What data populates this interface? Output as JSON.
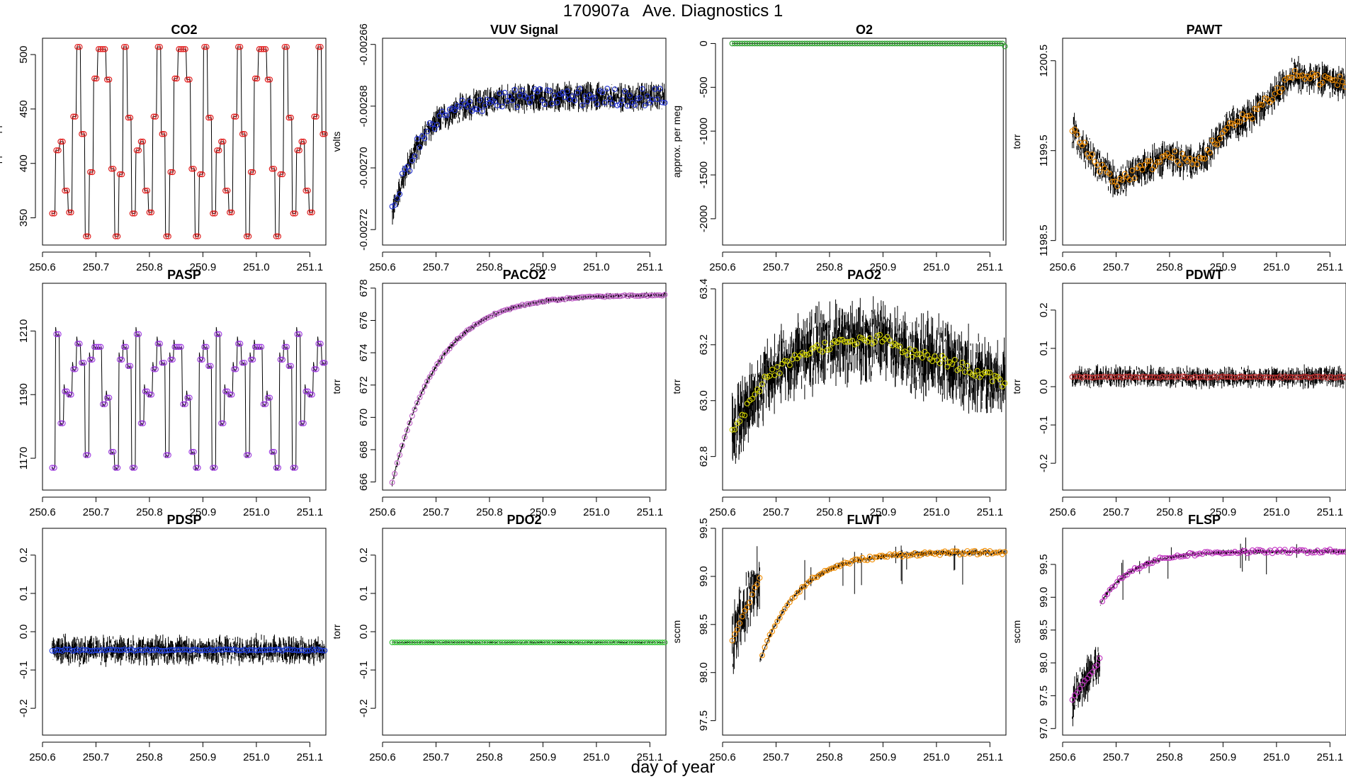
{
  "page": {
    "title": "170907a   Ave. Diagnostics 1",
    "xlabel": "day of year"
  },
  "chart_data": [
    {
      "type": "line",
      "title": "CO2",
      "ylabel": "approx. ppm",
      "marker_color": "#e02020",
      "xlim": [
        250.6,
        251.13
      ],
      "ylim": [
        325,
        515
      ],
      "xticks": [
        "250.6",
        "250.7",
        "250.8",
        "250.9",
        "251.0",
        "251.1"
      ],
      "yticks": [
        350,
        400,
        450,
        500
      ],
      "ytick_labels": [
        "350",
        "400",
        "450",
        "500"
      ],
      "series": [
        {
          "name": "CO2",
          "pattern": "cycle",
          "cycle_values": [
            354,
            412,
            420,
            375,
            355,
            443,
            507,
            427,
            333,
            392,
            478,
            505,
            505,
            477,
            395,
            333,
            390,
            507,
            442
          ]
        }
      ]
    },
    {
      "type": "line",
      "title": "VUV Signal",
      "ylabel": "volts",
      "marker_color": "#2030d0",
      "xlim": [
        250.6,
        251.13
      ],
      "ylim": [
        -0.002725,
        -0.002658
      ],
      "xticks": [
        "250.6",
        "250.7",
        "250.8",
        "250.9",
        "251.0",
        "251.1"
      ],
      "yticks": [
        -0.00272,
        -0.0027,
        -0.00268,
        -0.00266
      ],
      "ytick_labels": [
        "-0.00272",
        "-0.00270",
        "-0.00268",
        "-0.00266"
      ],
      "series": [
        {
          "name": "VUV",
          "pattern": "exp",
          "start": -0.002714,
          "end": -0.002677,
          "tau": 0.055,
          "noise": 7.5e-06,
          "spread": 3e-06
        }
      ]
    },
    {
      "type": "line",
      "title": "O2",
      "ylabel": "approx. per meg",
      "marker_color": "#2aa02a",
      "xlim": [
        250.6,
        251.13
      ],
      "ylim": [
        -2300,
        60
      ],
      "xticks": [
        "250.6",
        "250.7",
        "250.8",
        "250.9",
        "251.0",
        "251.1"
      ],
      "yticks": [
        -2000,
        -1500,
        -1000,
        -500,
        0
      ],
      "ytick_labels": [
        "-2000",
        "-1500",
        "-1000",
        "-500",
        "0"
      ],
      "series": [
        {
          "name": "O2",
          "pattern": "flat_drop",
          "value": 0,
          "drop_to": -2250,
          "noise": 0
        }
      ]
    },
    {
      "type": "line",
      "title": "PAWT",
      "ylabel": "torr",
      "marker_color": "#f08c00",
      "xlim": [
        250.6,
        251.13
      ],
      "ylim": [
        1198.45,
        1200.75
      ],
      "xticks": [
        "250.6",
        "250.7",
        "250.8",
        "250.9",
        "251.0",
        "251.1"
      ],
      "yticks": [
        1198.5,
        1199.5,
        1200.5
      ],
      "ytick_labels": [
        "1198.5",
        "1199.5",
        "1200.5"
      ],
      "series": [
        {
          "name": "PAWT",
          "pattern": "piecewise",
          "points": [
            [
              250.62,
              1199.72
            ],
            [
              250.65,
              1199.45
            ],
            [
              250.7,
              1199.15
            ],
            [
              250.75,
              1199.3
            ],
            [
              250.8,
              1199.45
            ],
            [
              250.85,
              1199.35
            ],
            [
              250.9,
              1199.7
            ],
            [
              250.95,
              1199.9
            ],
            [
              251.0,
              1200.15
            ],
            [
              251.03,
              1200.35
            ],
            [
              251.13,
              1200.25
            ]
          ],
          "noise": 0.32,
          "spread": 0.07
        }
      ]
    },
    {
      "type": "line",
      "title": "PASP",
      "ylabel": "torr",
      "marker_color": "#a040e0",
      "xlim": [
        250.6,
        251.13
      ],
      "ylim": [
        1160,
        1225
      ],
      "xticks": [
        "250.6",
        "250.7",
        "250.8",
        "250.9",
        "251.0",
        "251.1"
      ],
      "yticks": [
        1170,
        1190,
        1210
      ],
      "ytick_labels": [
        "1170",
        "1190",
        "1210"
      ],
      "series": [
        {
          "name": "PASP",
          "pattern": "cycle",
          "cycle_values": [
            1167,
            1209,
            1181,
            1191,
            1190,
            1198,
            1206,
            1200,
            1171,
            1201,
            1205,
            1205,
            1187,
            1189,
            1172,
            1167,
            1201,
            1205,
            1199
          ]
        }
      ]
    },
    {
      "type": "line",
      "title": "PACO2",
      "ylabel": "torr",
      "marker_color": "#c060c8",
      "xlim": [
        250.6,
        251.13
      ],
      "ylim": [
        665.5,
        678.3
      ],
      "xticks": [
        "250.6",
        "250.7",
        "250.8",
        "250.9",
        "251.0",
        "251.1"
      ],
      "yticks": [
        666,
        668,
        670,
        672,
        674,
        676,
        678
      ],
      "ytick_labels": [
        "666",
        "668",
        "670",
        "672",
        "674",
        "676",
        "678"
      ],
      "series": [
        {
          "name": "PACO2",
          "pattern": "exp",
          "start": 666.2,
          "end": 677.6,
          "tau": 0.085,
          "noise": 0.28,
          "spread": 0.05
        }
      ]
    },
    {
      "type": "line",
      "title": "PAO2",
      "ylabel": "torr",
      "marker_color": "#d4d400",
      "xlim": [
        250.6,
        251.13
      ],
      "ylim": [
        62.68,
        63.42
      ],
      "xticks": [
        "250.6",
        "250.7",
        "250.8",
        "250.9",
        "251.0",
        "251.1"
      ],
      "yticks": [
        62.8,
        63.0,
        63.2,
        63.4
      ],
      "ytick_labels": [
        "62.8",
        "63.0",
        "63.2",
        "63.4"
      ],
      "series": [
        {
          "name": "PAO2",
          "pattern": "piecewise",
          "points": [
            [
              250.62,
              62.9
            ],
            [
              250.68,
              63.08
            ],
            [
              250.75,
              63.17
            ],
            [
              250.8,
              63.2
            ],
            [
              250.9,
              63.22
            ],
            [
              250.95,
              63.17
            ],
            [
              251.0,
              63.15
            ],
            [
              251.05,
              63.12
            ],
            [
              251.13,
              63.06
            ]
          ],
          "noise": 0.23,
          "spread": 0.018
        }
      ]
    },
    {
      "type": "line",
      "title": "PDWT",
      "ylabel": "torr",
      "marker_color": "#c03030",
      "xlim": [
        250.6,
        251.13
      ],
      "ylim": [
        -0.27,
        0.27
      ],
      "xticks": [
        "250.6",
        "250.7",
        "250.8",
        "250.9",
        "251.0",
        "251.1"
      ],
      "yticks": [
        -0.2,
        -0.1,
        0.0,
        0.1,
        0.2
      ],
      "ytick_labels": [
        "-0.2",
        "-0.1",
        "0.0",
        "0.1",
        "0.2"
      ],
      "series": [
        {
          "name": "PDWT",
          "pattern": "flat",
          "value": 0.025,
          "noise": 0.045,
          "spread": 0.002
        }
      ]
    },
    {
      "type": "line",
      "title": "PDSP",
      "ylabel": "torr",
      "marker_color": "#2040e0",
      "xlim": [
        250.6,
        251.13
      ],
      "ylim": [
        -0.27,
        0.27
      ],
      "xticks": [
        "250.6",
        "250.7",
        "250.8",
        "250.9",
        "251.0",
        "251.1"
      ],
      "yticks": [
        -0.2,
        -0.1,
        0.0,
        0.1,
        0.2
      ],
      "ytick_labels": [
        "-0.2",
        "-0.1",
        "0.0",
        "0.1",
        "0.2"
      ],
      "series": [
        {
          "name": "PDSP",
          "pattern": "flat",
          "value": -0.048,
          "noise": 0.06,
          "spread": 0.002
        }
      ]
    },
    {
      "type": "line",
      "title": "PDO2",
      "ylabel": "torr",
      "marker_color": "#30c030",
      "xlim": [
        250.6,
        251.13
      ],
      "ylim": [
        -0.27,
        0.27
      ],
      "xticks": [
        "250.6",
        "250.7",
        "250.8",
        "250.9",
        "251.0",
        "251.1"
      ],
      "yticks": [
        -0.2,
        -0.1,
        0.0,
        0.1,
        0.2
      ],
      "ytick_labels": [
        "-0.2",
        "-0.1",
        "0.0",
        "0.1",
        "0.2"
      ],
      "series": [
        {
          "name": "PDO2",
          "pattern": "flat",
          "value": -0.028,
          "noise": 0.004,
          "spread": 0
        }
      ]
    },
    {
      "type": "line",
      "title": "FLWT",
      "ylabel": "sccm",
      "marker_color": "#f08c00",
      "xlim": [
        250.6,
        251.13
      ],
      "ylim": [
        97.35,
        99.5
      ],
      "xticks": [
        "250.6",
        "250.7",
        "250.8",
        "250.9",
        "251.0",
        "251.1"
      ],
      "yticks": [
        97.5,
        98.0,
        98.5,
        99.0,
        99.5
      ],
      "ytick_labels": [
        "97.5",
        "98.0",
        "98.5",
        "99.0",
        "99.5"
      ],
      "series": [
        {
          "name": "FLWT",
          "pattern": "flw_ramp",
          "pre_start": 98.35,
          "pre_end": 99.0,
          "jump": 250.67,
          "start": 98.12,
          "end": 99.25,
          "tau": 0.07,
          "noise": 0.6,
          "noise_post": 0.05,
          "spread": 0.02
        }
      ]
    },
    {
      "type": "line",
      "title": "FLSP",
      "ylabel": "sccm",
      "marker_color": "#c030c0",
      "xlim": [
        250.6,
        251.13
      ],
      "ylim": [
        96.9,
        100.05
      ],
      "xticks": [
        "250.6",
        "250.7",
        "250.8",
        "250.9",
        "251.0",
        "251.1"
      ],
      "yticks": [
        97.0,
        97.5,
        98.0,
        98.5,
        99.0,
        99.5
      ],
      "ytick_labels": [
        "97.0",
        "97.5",
        "98.0",
        "98.5",
        "99.0",
        "99.5"
      ],
      "series": [
        {
          "name": "FLSP",
          "pattern": "flw_ramp",
          "pre_start": 97.45,
          "pre_end": 98.05,
          "jump": 250.67,
          "start": 98.9,
          "end": 99.7,
          "tau": 0.06,
          "noise": 0.55,
          "noise_post": 0.06,
          "spread": 0.03
        }
      ]
    }
  ]
}
